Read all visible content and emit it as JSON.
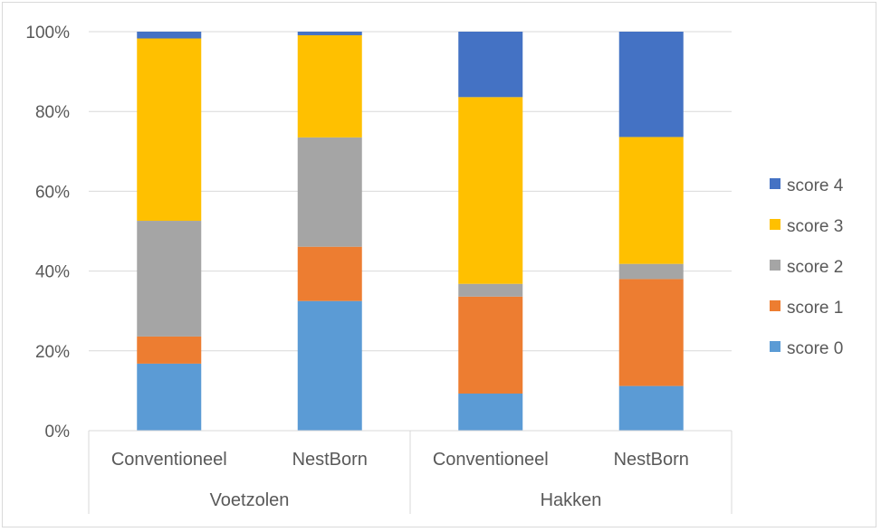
{
  "chart_data": {
    "type": "bar",
    "stacked": "percent",
    "title": "",
    "xlabel": "",
    "ylabel": "",
    "ylim": [
      0,
      100
    ],
    "yticks": [
      "0%",
      "20%",
      "40%",
      "60%",
      "80%",
      "100%"
    ],
    "categories": [
      "Conventioneel",
      "NestBorn",
      "Conventioneel",
      "NestBorn"
    ],
    "groups": [
      {
        "label": "Voetzolen",
        "span": [
          0,
          1
        ]
      },
      {
        "label": "Hakken",
        "span": [
          2,
          3
        ]
      }
    ],
    "series": [
      {
        "name": "score 0",
        "color": "#5b9bd5",
        "values": [
          16.8,
          32.5,
          9.3,
          11.2
        ]
      },
      {
        "name": "score 1",
        "color": "#ed7d31",
        "values": [
          6.8,
          13.6,
          24.3,
          26.8
        ]
      },
      {
        "name": "score 2",
        "color": "#a5a5a5",
        "values": [
          29.0,
          27.4,
          3.2,
          3.8
        ]
      },
      {
        "name": "score 3",
        "color": "#ffc000",
        "values": [
          45.7,
          25.6,
          46.8,
          31.8
        ]
      },
      {
        "name": "score 4",
        "color": "#4472c4",
        "values": [
          1.7,
          0.9,
          16.4,
          26.4
        ]
      }
    ],
    "legend_position": "right",
    "grid": true
  }
}
